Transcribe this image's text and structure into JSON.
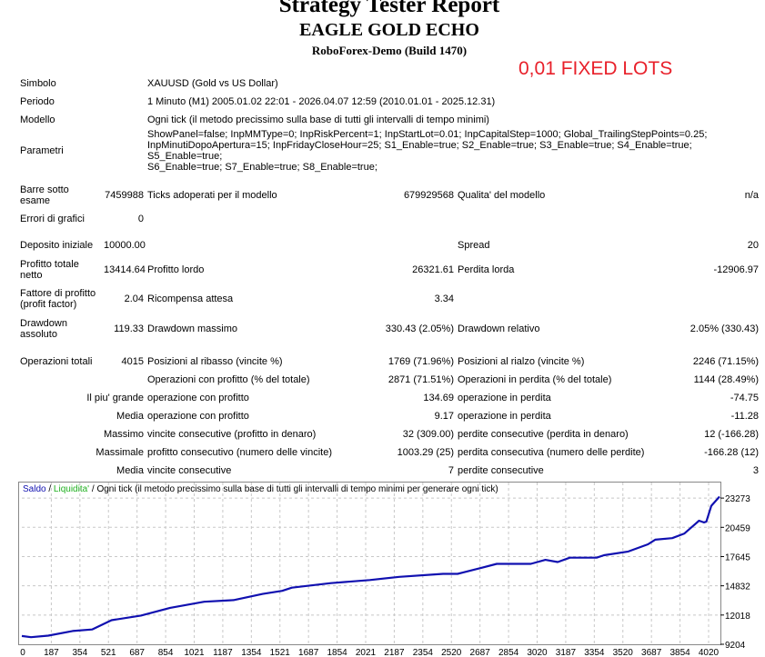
{
  "header": {
    "title": "Strategy Tester Report",
    "ea_name": "EAGLE GOLD ECHO",
    "server": "RoboForex-Demo (Build 1470)",
    "note": "0,01 FIXED LOTS"
  },
  "info": {
    "symbol_label": "Simbolo",
    "symbol": "XAUUSD (Gold vs US Dollar)",
    "period_label": "Periodo",
    "period": "1 Minuto (M1) 2005.01.02 22:01 - 2026.04.07 12:59 (2010.01.01 - 2025.12.31)",
    "model_label": "Modello",
    "model": "Ogni tick (il metodo precissimo sulla base di tutti gli intervalli di tempo minimi)",
    "params_label": "Parametri",
    "params": [
      "ShowPanel=false; InpMMType=0; InpRiskPercent=1; InpStartLot=0.01; InpCapitalStep=1000; Global_TrailingStepPoints=0.25;",
      "InpMinutiDopoApertura=15; InpFridayCloseHour=25; S1_Enable=true; S2_Enable=true; S3_Enable=true; S4_Enable=true; S5_Enable=true;",
      "S6_Enable=true; S7_Enable=true; S8_Enable=true;"
    ]
  },
  "stats": {
    "bars_label": "Barre sotto esame",
    "bars": "7459988",
    "ticks_label": "Ticks adoperati per il modello",
    "ticks": "679929568",
    "quality_label": "Qualita' del modello",
    "quality": "n/a",
    "errors_label": "Errori di grafici",
    "errors": "0",
    "deposit_label": "Deposito iniziale",
    "deposit": "10000.00",
    "spread_label": "Spread",
    "spread": "20",
    "net_label": "Profitto totale netto",
    "net": "13414.64",
    "gross_profit_label": "Profitto lordo",
    "gross_profit": "26321.61",
    "gross_loss_label": "Perdita lorda",
    "gross_loss": "-12906.97",
    "pf_label": "Fattore di profitto (profit factor)",
    "pf": "2.04",
    "payoff_label": "Ricompensa attesa",
    "payoff": "3.34",
    "dd_abs_label": "Drawdown assoluto",
    "dd_abs": "119.33",
    "dd_max_label": "Drawdown massimo",
    "dd_max": "330.43 (2.05%)",
    "dd_rel_label": "Drawdown relativo",
    "dd_rel": "2.05% (330.43)",
    "trades_label": "Operazioni totali",
    "trades": "4015",
    "short_label": "Posizioni al ribasso (vincite %)",
    "short": "1769 (71.96%)",
    "long_label": "Posizioni al rialzo (vincite %)",
    "long": "2246 (71.15%)",
    "win_label": "Operazioni con profitto (% del totale)",
    "win": "2871 (71.51%)",
    "loss_label": "Operazioni in perdita (% del totale)",
    "loss": "1144 (28.49%)",
    "largest_label": "Il piu' grande",
    "largest_win_label": "operazione con profitto",
    "largest_win": "134.69",
    "largest_loss_label": "operazione in perdita",
    "largest_loss": "-74.75",
    "avg_label": "Media",
    "avg_win_label": "operazione con profitto",
    "avg_win": "9.17",
    "avg_loss_label": "operazione in perdita",
    "avg_loss": "-11.28",
    "max_label": "Massimo",
    "max_cw_label": "vincite consecutive (profitto in denaro)",
    "max_cw": "32 (309.00)",
    "max_cl_label": "perdite consecutive (perdita in denaro)",
    "max_cl": "12 (-166.28)",
    "maximal_label": "Massimale",
    "maximal_cp_label": "profitto consecutivo (numero delle vincite)",
    "maximal_cp": "1003.29 (25)",
    "maximal_cl_label": "perdita consecutiva (numero delle perdite)",
    "maximal_cl": "-166.28 (12)",
    "avgc_label": "Media",
    "avgc_w_label": "vincite consecutive",
    "avgc_w": "7",
    "avgc_l_label": "perdite consecutive",
    "avgc_l": "3"
  },
  "chart_data": {
    "type": "line",
    "legend": {
      "balance": "Saldo",
      "equity": "Liquidita'",
      "sep": " / ",
      "desc": "Ogni tick (il metodo precissimo sulla base di tutti gli intervalli di tempo minimi per generare ogni tick)"
    },
    "x_ticks": [
      "0",
      "187",
      "354",
      "521",
      "687",
      "854",
      "1021",
      "1187",
      "1354",
      "1521",
      "1687",
      "1854",
      "2021",
      "2187",
      "2354",
      "2520",
      "2687",
      "2854",
      "3020",
      "3187",
      "3354",
      "3520",
      "3687",
      "3854",
      "4020"
    ],
    "y_ticks": [
      9204,
      12018,
      14832,
      17645,
      20459,
      23273
    ],
    "xlim": [
      0,
      4015
    ],
    "ylim": [
      9204,
      24770
    ],
    "colors": {
      "balance": "#1010b0",
      "equity": "#20b020",
      "grid": "#c8c8c8"
    },
    "series": [
      {
        "name": "Saldo",
        "points": [
          [
            0,
            10000
          ],
          [
            53,
            9890
          ],
          [
            152,
            10037
          ],
          [
            292,
            10480
          ],
          [
            404,
            10630
          ],
          [
            516,
            11520
          ],
          [
            685,
            11970
          ],
          [
            853,
            12710
          ],
          [
            1049,
            13300
          ],
          [
            1218,
            13450
          ],
          [
            1386,
            14050
          ],
          [
            1498,
            14350
          ],
          [
            1554,
            14650
          ],
          [
            1779,
            15090
          ],
          [
            2003,
            15390
          ],
          [
            2172,
            15690
          ],
          [
            2424,
            15980
          ],
          [
            2508,
            15980
          ],
          [
            2649,
            16580
          ],
          [
            2733,
            16940
          ],
          [
            2929,
            16940
          ],
          [
            3013,
            17330
          ],
          [
            3084,
            17120
          ],
          [
            3154,
            17540
          ],
          [
            3308,
            17540
          ],
          [
            3350,
            17770
          ],
          [
            3490,
            18130
          ],
          [
            3603,
            18820
          ],
          [
            3645,
            19270
          ],
          [
            3743,
            19420
          ],
          [
            3813,
            19860
          ],
          [
            3897,
            21100
          ],
          [
            3925,
            20930
          ],
          [
            3939,
            21000
          ],
          [
            3968,
            22530
          ],
          [
            4015,
            23414.64
          ]
        ]
      }
    ]
  }
}
